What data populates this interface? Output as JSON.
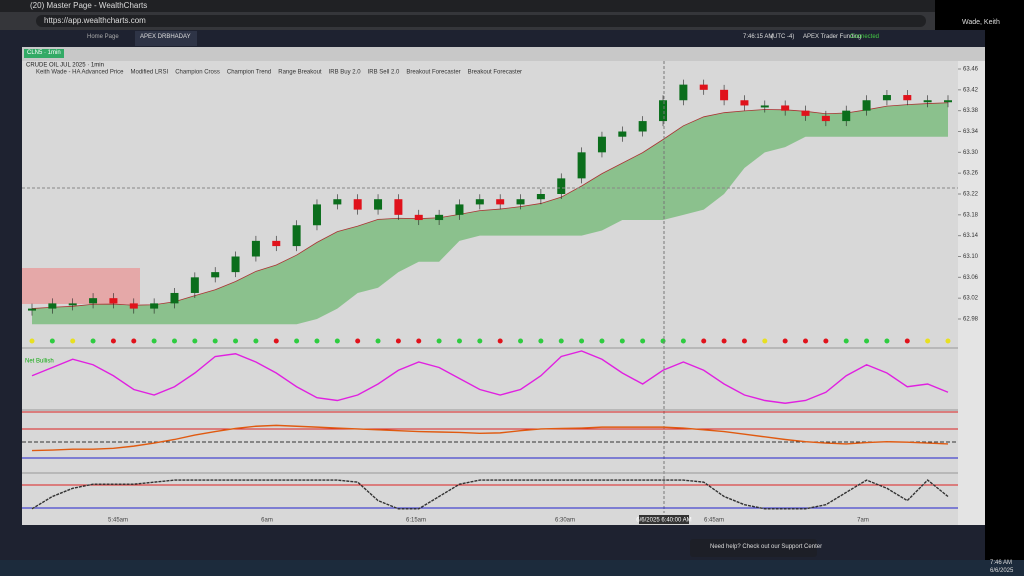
{
  "browser": {
    "tab_title": "(20) Master Page - WealthCharts",
    "url": "https://app.wealthcharts.com"
  },
  "user": "Wade, Keith",
  "tabs": [
    "Home Page",
    "APEX DRBHADAY"
  ],
  "status": {
    "time": "7:46:15 AM",
    "timezone": "(UTC -4)",
    "account": "APEX Trader Funding",
    "connection": "Connected"
  },
  "chart": {
    "symbol": "CLN5 · 1min",
    "title": "CRUDE OIL JUL 2025 · 1min",
    "indicators": [
      "Keith Wade - HA Advanced Price",
      "Modified LRSI",
      "Champion Cross",
      "Champion Trend",
      "Range Breakout",
      "IRB Buy 2.0",
      "IRB Sell 2.0",
      "Breakout Forecaster",
      "Breakout Forecaster"
    ],
    "net_label": "Net Bullish",
    "price_ylim": [
      62.98,
      63.46
    ],
    "price_ticks": [
      {
        "value": 63.46,
        "label": "63.46"
      },
      {
        "value": 63.42,
        "label": "63.42"
      },
      {
        "value": 63.38,
        "label": "63.38"
      },
      {
        "value": 63.34,
        "label": "63.34"
      },
      {
        "value": 63.3,
        "label": "63.30"
      },
      {
        "value": 63.26,
        "label": "63.26"
      },
      {
        "value": 63.22,
        "label": "63.22"
      },
      {
        "value": 63.18,
        "label": "63.18"
      },
      {
        "value": 63.14,
        "label": "63.14"
      },
      {
        "value": 63.1,
        "label": "63.10"
      },
      {
        "value": 63.06,
        "label": "63.06"
      },
      {
        "value": 63.02,
        "label": "63.02"
      },
      {
        "value": 62.98,
        "label": "62.98"
      }
    ],
    "closes": [
      63.0,
      63.01,
      63.01,
      63.02,
      63.01,
      63.0,
      63.01,
      63.03,
      63.06,
      63.07,
      63.1,
      63.13,
      63.12,
      63.16,
      63.2,
      63.21,
      63.19,
      63.21,
      63.18,
      63.17,
      63.18,
      63.2,
      63.21,
      63.2,
      63.21,
      63.22,
      63.25,
      63.3,
      63.33,
      63.34,
      63.36,
      63.4,
      63.43,
      63.42,
      63.4,
      63.39,
      63.39,
      63.38,
      63.37,
      63.36,
      63.38,
      63.4,
      63.41,
      63.4,
      63.4,
      63.4
    ],
    "time_labels": [
      "5:45am",
      "6am",
      "6:15am",
      "6:30am",
      "6:45am",
      "7am"
    ],
    "crosshair_label": "6/6/2025 6:40:00 AM",
    "oscillator": {
      "ylim": [
        -1,
        1
      ],
      "values": [
        0.1,
        0.4,
        0.7,
        0.5,
        0.1,
        -0.4,
        -0.6,
        -0.3,
        0.2,
        0.8,
        0.9,
        0.6,
        0.2,
        -0.3,
        -0.7,
        -0.8,
        -0.6,
        -0.2,
        0.3,
        0.6,
        0.4,
        0.0,
        -0.4,
        -0.6,
        -0.4,
        0.1,
        0.8,
        1.0,
        0.7,
        0.2,
        -0.2,
        0.3,
        0.6,
        0.3,
        -0.2,
        -0.6,
        -0.8,
        -0.9,
        -0.8,
        -0.5,
        0.1,
        0.5,
        0.2,
        -0.3,
        -0.2,
        -0.5
      ]
    },
    "lrsi": {
      "ylim": [
        -60,
        60
      ],
      "values": [
        -25,
        -24,
        -22,
        -22,
        -20,
        -15,
        -8,
        0,
        10,
        18,
        25,
        30,
        32,
        30,
        28,
        26,
        24,
        22,
        20,
        18,
        17,
        16,
        14,
        15,
        20,
        24,
        25,
        26,
        28,
        28,
        28,
        28,
        26,
        22,
        18,
        12,
        6,
        0,
        -5,
        -8,
        -10,
        -7,
        -5,
        -6,
        -8,
        -10
      ]
    },
    "forecast": {
      "ylim": [
        0,
        1
      ],
      "values": [
        0.2,
        0.5,
        0.7,
        0.8,
        0.8,
        0.8,
        0.85,
        0.9,
        0.9,
        0.9,
        0.9,
        0.9,
        0.9,
        0.9,
        0.9,
        0.9,
        0.85,
        0.4,
        0.2,
        0.2,
        0.5,
        0.8,
        0.9,
        0.9,
        0.9,
        0.9,
        0.9,
        0.9,
        0.9,
        0.9,
        0.9,
        0.9,
        0.9,
        0.85,
        0.5,
        0.3,
        0.2,
        0.2,
        0.2,
        0.3,
        0.6,
        0.9,
        0.7,
        0.4,
        0.9,
        0.5
      ]
    }
  },
  "support": "Need help? Check out our Support Center",
  "taskbar": {
    "time": "7:46 AM",
    "date": "6/6/2025"
  }
}
